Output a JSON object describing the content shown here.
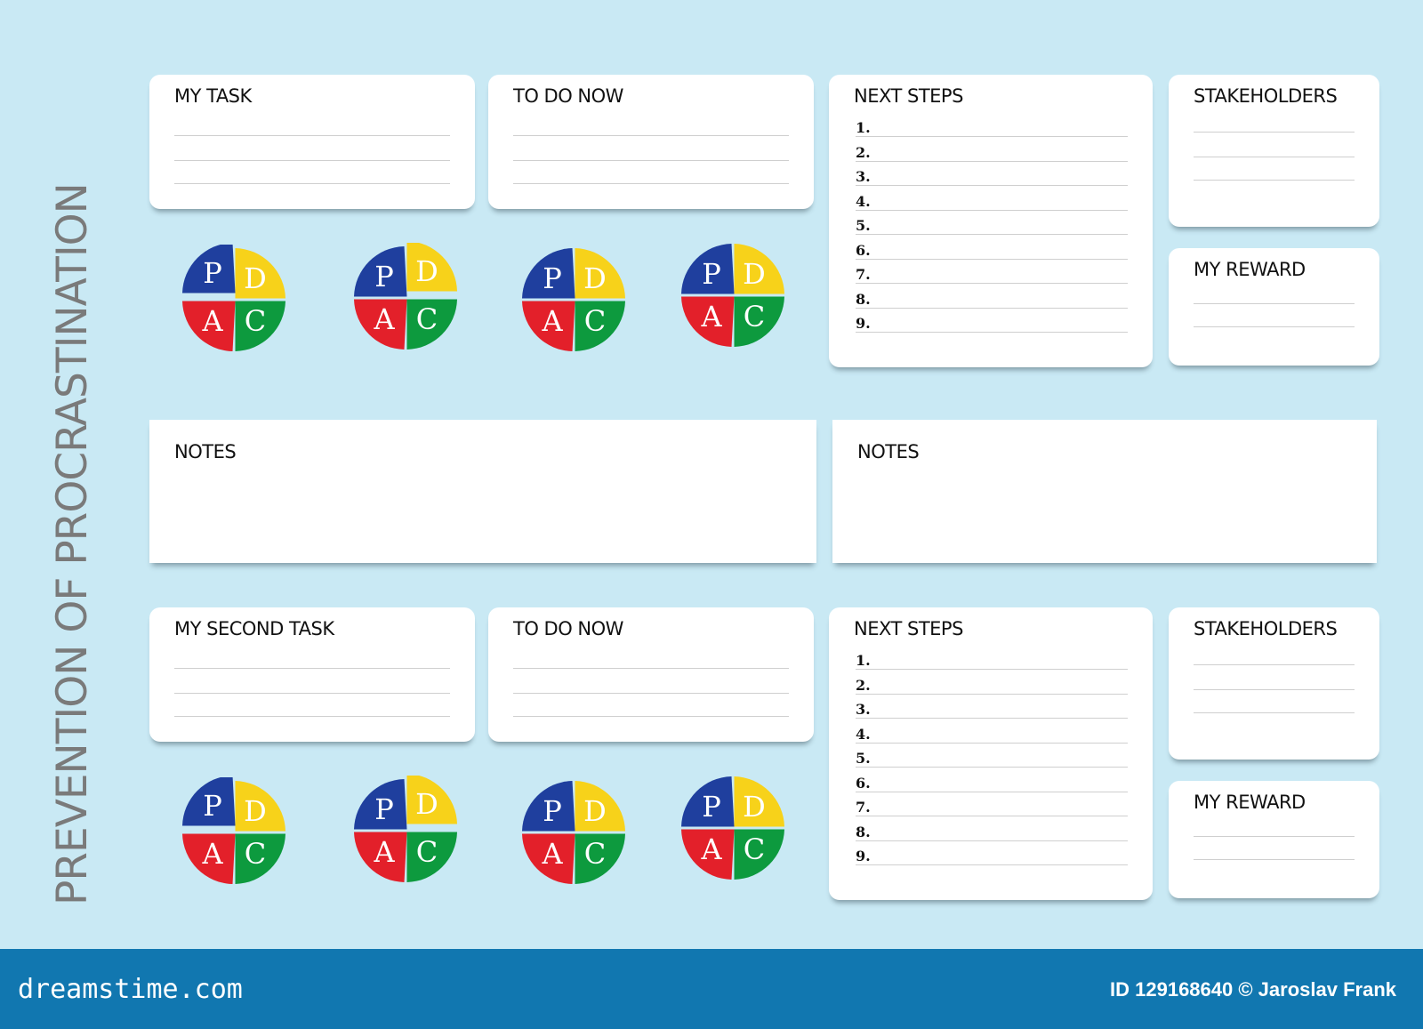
{
  "vertical_title": "PREVENTION OF PROCRASTINATION",
  "sections": [
    {
      "task_title": "MY TASK",
      "todo_title": "TO DO NOW",
      "next_title": "NEXT STEPS",
      "next_numbers": [
        "1.",
        "2.",
        "3.",
        "4.",
        "5.",
        "6.",
        "7.",
        "8.",
        "9."
      ],
      "stakeholders_title": "STAKEHOLDERS",
      "reward_title": "MY REWARD"
    },
    {
      "task_title": "MY  SECOND TASK",
      "todo_title": "TO DO NOW",
      "next_title": "NEXT STEPS",
      "next_numbers": [
        "1.",
        "2.",
        "3.",
        "4.",
        "5.",
        "6.",
        "7.",
        "8.",
        "9."
      ],
      "stakeholders_title": "STAKEHOLDERS",
      "reward_title": "MY REWARD"
    }
  ],
  "notes": [
    "NOTES",
    "NOTES"
  ],
  "pdca": {
    "letters": [
      "P",
      "D",
      "C",
      "A"
    ],
    "colors": {
      "P": "#1f3f9e",
      "D": "#f7d21a",
      "C": "#0d9a3e",
      "A": "#e3202a"
    }
  },
  "footer": {
    "logo": "dreamstime.com",
    "credit": "ID 129168640 © Jaroslav Frank"
  },
  "colors": {
    "background": "#c9e9f4",
    "footer": "#1177b0",
    "title": "#7a7a7a"
  }
}
